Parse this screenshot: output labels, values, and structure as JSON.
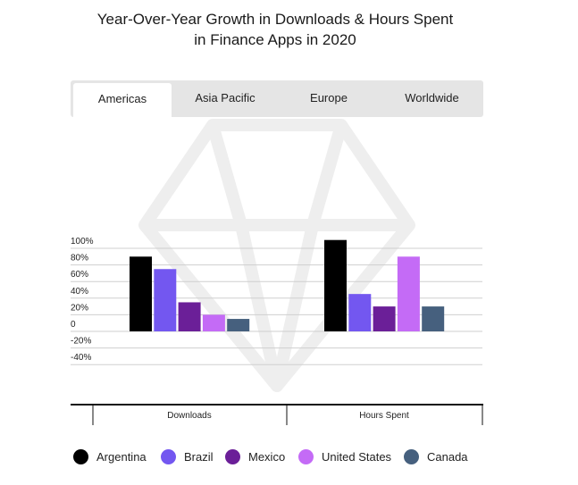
{
  "title_lines": [
    "Year-Over-Year Growth in Downloads & Hours Spent",
    "in Finance Apps in 2020"
  ],
  "tabs": [
    {
      "label": "Americas",
      "active": true
    },
    {
      "label": "Asia Pacific",
      "active": false
    },
    {
      "label": "Europe",
      "active": false
    },
    {
      "label": "Worldwide",
      "active": false
    }
  ],
  "colors": {
    "tab_bar": "#e5e5e5",
    "grid": "#cfcfcf",
    "axis": "#111111",
    "watermark": "#eeeeee"
  },
  "chart_data": {
    "type": "bar",
    "title": "Year-Over-Year Growth in Downloads & Hours Spent in Finance Apps in 2020",
    "categories": [
      "Downloads",
      "Hours Spent"
    ],
    "series": [
      {
        "name": "Argentina",
        "color": "#000000",
        "values": [
          90,
          110
        ]
      },
      {
        "name": "Brazil",
        "color": "#7357f0",
        "values": [
          75,
          45
        ]
      },
      {
        "name": "Mexico",
        "color": "#6b1f98",
        "values": [
          35,
          30
        ]
      },
      {
        "name": "United States",
        "color": "#c46bf6",
        "values": [
          20,
          90
        ]
      },
      {
        "name": "Canada",
        "color": "#46607e",
        "values": [
          15,
          30
        ]
      }
    ],
    "yticks": [
      100,
      80,
      60,
      40,
      20,
      0,
      -20,
      -40
    ],
    "ytick_labels": [
      "100%",
      "80%",
      "60%",
      "40%",
      "20%",
      "0",
      "-20%",
      "-40%"
    ],
    "ylim": [
      -45,
      110
    ],
    "xlabel": "",
    "ylabel": "",
    "grid": true,
    "legend_position": "bottom"
  }
}
